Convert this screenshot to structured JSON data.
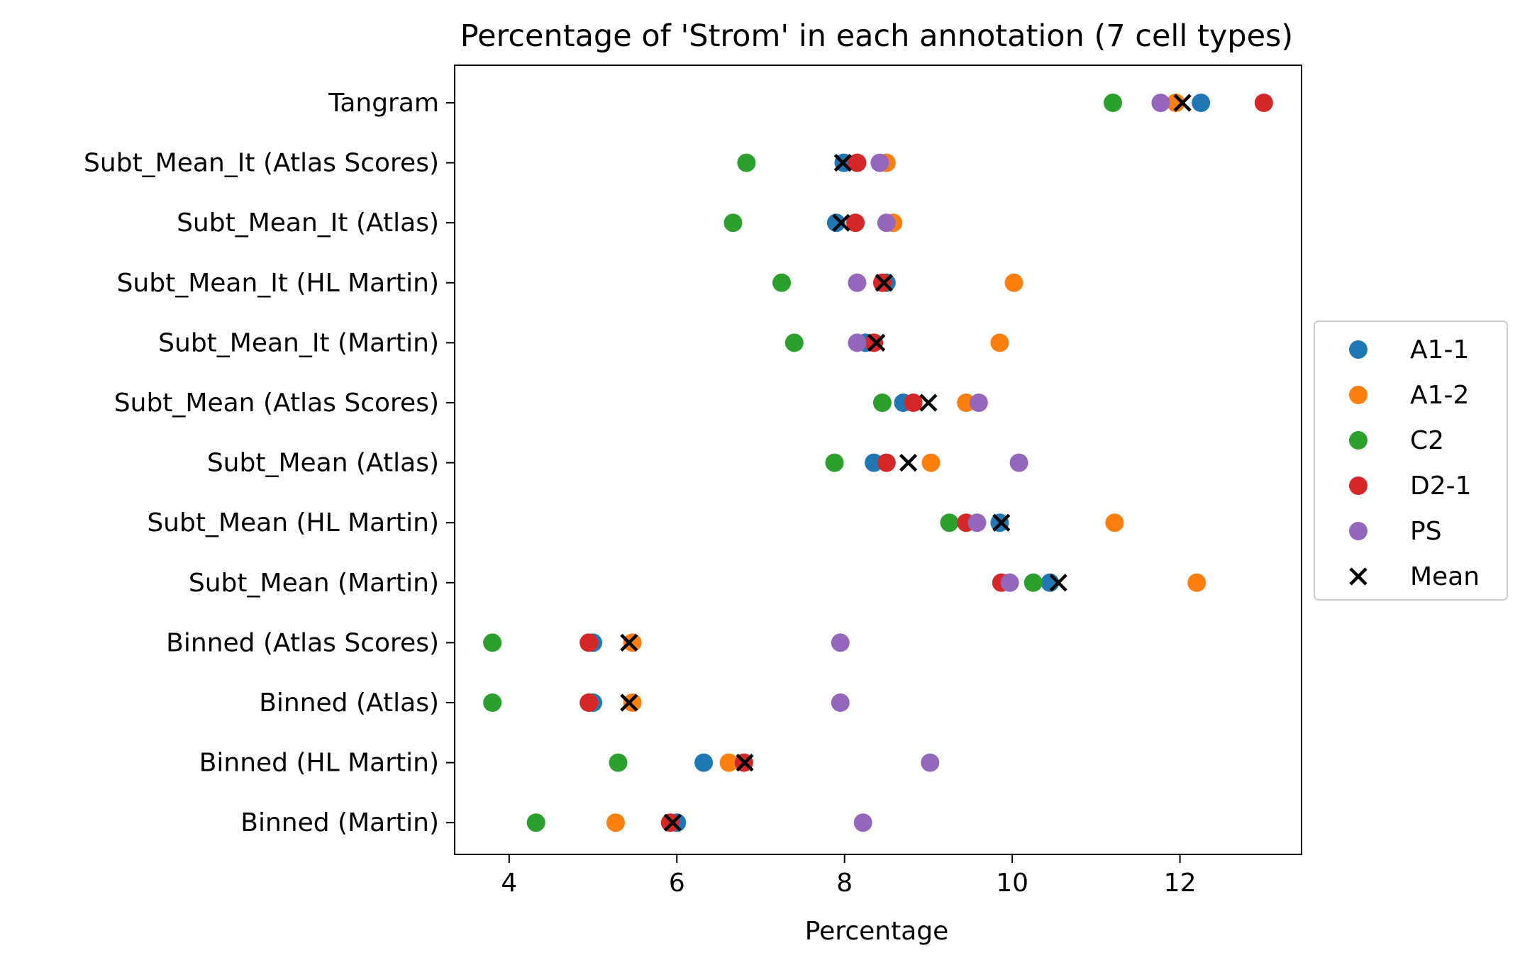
{
  "chart_data": {
    "type": "scatter",
    "title": "Percentage of 'Strom' in each annotation (7 cell types)",
    "xlabel": "Percentage",
    "ylabel": "",
    "xlim": [
      3.35,
      13.45
    ],
    "xticks": [
      4,
      6,
      8,
      10,
      12
    ],
    "grid": false,
    "legend_position": "right",
    "categories": [
      "Tangram",
      "Subt_Mean_It (Atlas Scores)",
      "Subt_Mean_It (Atlas)",
      "Subt_Mean_It (HL Martin)",
      "Subt_Mean_It (Martin)",
      "Subt_Mean (Atlas Scores)",
      "Subt_Mean (Atlas)",
      "Subt_Mean (HL Martin)",
      "Subt_Mean (Martin)",
      "Binned (Atlas Scores)",
      "Binned (Atlas)",
      "Binned (HL Martin)",
      "Binned (Martin)"
    ],
    "series": [
      {
        "name": "A1-1",
        "color": "#1f77b4",
        "marker": "circle",
        "values": [
          12.25,
          7.99,
          7.9,
          8.5,
          8.25,
          8.7,
          8.35,
          9.85,
          10.45,
          5.0,
          5.0,
          6.32,
          6.0
        ]
      },
      {
        "name": "A1-2",
        "color": "#ff7f0e",
        "marker": "circle",
        "values": [
          11.95,
          8.5,
          8.58,
          10.02,
          9.85,
          9.45,
          9.03,
          11.22,
          12.2,
          5.47,
          5.47,
          6.62,
          5.27
        ]
      },
      {
        "name": "C2",
        "color": "#2ca02c",
        "marker": "circle",
        "values": [
          11.2,
          6.83,
          6.67,
          7.25,
          7.4,
          8.45,
          7.88,
          9.25,
          10.25,
          3.8,
          3.8,
          5.3,
          4.32
        ]
      },
      {
        "name": "D2-1",
        "color": "#d62728",
        "marker": "circle",
        "values": [
          13.0,
          8.15,
          8.13,
          8.45,
          8.35,
          8.82,
          8.5,
          9.45,
          9.87,
          4.95,
          4.95,
          6.8,
          5.92
        ]
      },
      {
        "name": "PS",
        "color": "#9467bd",
        "marker": "circle",
        "values": [
          11.77,
          8.42,
          8.5,
          8.15,
          8.15,
          9.6,
          10.08,
          9.58,
          9.97,
          7.95,
          7.95,
          9.02,
          8.22
        ]
      },
      {
        "name": "Mean",
        "color": "#000000",
        "marker": "x",
        "values": [
          12.03,
          7.98,
          7.96,
          8.47,
          8.38,
          9.0,
          8.76,
          9.87,
          10.55,
          5.43,
          5.43,
          6.81,
          5.95
        ]
      }
    ]
  }
}
